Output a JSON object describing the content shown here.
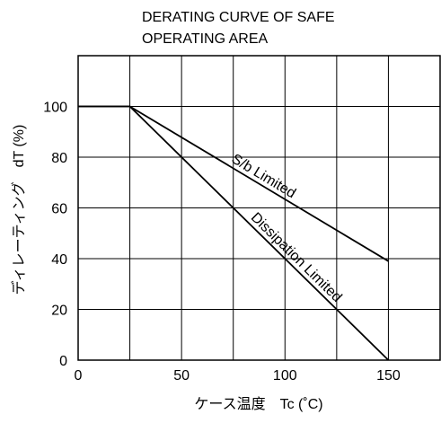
{
  "chart_data": {
    "type": "line",
    "title_lines": [
      "DERATING CURVE OF SAFE",
      "OPERATING AREA"
    ],
    "xlabel": "ケース温度　Tc (˚C)",
    "ylabel": "ディレーティング　dT (%)",
    "x_ticks": [
      "0",
      "50",
      "100",
      "150"
    ],
    "y_ticks": [
      "0",
      "20",
      "40",
      "60",
      "80",
      "100"
    ],
    "xlim": [
      0,
      175
    ],
    "ylim": [
      0,
      120
    ],
    "x_grid_step": 25,
    "y_grid_step": 20,
    "grid": true,
    "series": [
      {
        "name": "S/b Limited",
        "x": [
          0,
          25,
          150
        ],
        "y": [
          100,
          100,
          39
        ]
      },
      {
        "name": "Dissipation Limited",
        "x": [
          0,
          25,
          150
        ],
        "y": [
          100,
          100,
          0
        ]
      }
    ],
    "colors": {
      "line": "#000000",
      "grid": "#000000",
      "background": "#ffffff"
    }
  }
}
